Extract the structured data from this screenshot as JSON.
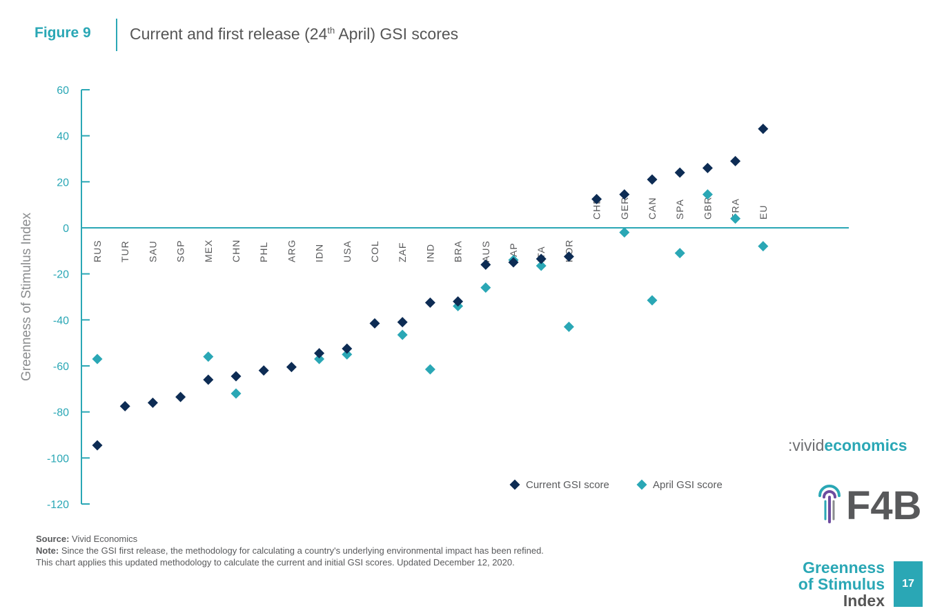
{
  "header": {
    "figure_label": "Figure 9",
    "title_part1": "Current and first release (24",
    "title_sup": "th",
    "title_part2": " April) GSI scores"
  },
  "colors": {
    "accent": "#2aa7b5",
    "current": "#0d2c54",
    "april": "#2aa7b5",
    "text": "#58595b"
  },
  "chart_data": {
    "type": "scatter",
    "title": "Current and first release (24th April) GSI scores",
    "xlabel": "",
    "ylabel": "Greenness of Stimulus Index",
    "ylim": [
      -120,
      60
    ],
    "yticks": [
      60,
      40,
      20,
      0,
      -20,
      -40,
      -60,
      -80,
      -100,
      -120
    ],
    "grid": false,
    "categories": [
      "RUS",
      "TUR",
      "SAU",
      "SGP",
      "MEX",
      "CHN",
      "PHL",
      "ARG",
      "IDN",
      "USA",
      "COL",
      "ZAF",
      "IND",
      "BRA",
      "AUS",
      "JAP",
      "ITA",
      "KOR",
      "CHE",
      "GER",
      "CAN",
      "SPA",
      "GBR",
      "FRA",
      "EU"
    ],
    "series": [
      {
        "name": "Current GSI score",
        "marker": "diamond",
        "color": "#0d2c54",
        "values": [
          -94.5,
          -77.5,
          -76,
          -73.5,
          -66,
          -64.5,
          -62,
          -60.5,
          -54.5,
          -52.5,
          -41.5,
          -41,
          -32.5,
          -32,
          -16,
          -15,
          -13.5,
          -12.5,
          12.5,
          14.5,
          21,
          24,
          26,
          29,
          43
        ]
      },
      {
        "name": "April GSI score",
        "marker": "diamond",
        "color": "#2aa7b5",
        "values": [
          -57,
          null,
          null,
          null,
          -56,
          -72,
          null,
          null,
          -57,
          -55,
          null,
          -46.5,
          -61.5,
          -34,
          -26,
          -14,
          -16.5,
          -43,
          null,
          -2,
          -31.5,
          -11,
          14.5,
          4,
          -8
        ]
      }
    ],
    "legend": {
      "placement": "bottom-right",
      "entries": [
        "Current GSI score",
        "April GSI score"
      ]
    }
  },
  "footer": {
    "source_label": "Source:",
    "source_text": " Vivid Economics",
    "note_label": "Note:",
    "note_text": " Since the GSI first release, the methodology for calculating a country's underlying environmental impact has been refined.",
    "note_text2": "This chart applies this updated methodology to calculate the current and initial GSI scores. Updated December 12, 2020."
  },
  "logos": {
    "vivid_prefix": ":vivid",
    "vivid_suffix": "economics",
    "f4b": "F4B",
    "gsi_line1": "Greenness",
    "gsi_line2": "of Stimulus",
    "gsi_line3": "Index"
  },
  "page": {
    "number": "17"
  }
}
